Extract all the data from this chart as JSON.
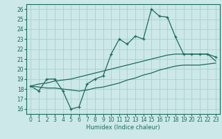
{
  "xlabel": "Humidex (Indice chaleur)",
  "xlim": [
    -0.5,
    23.5
  ],
  "ylim": [
    15.5,
    26.5
  ],
  "yticks": [
    16,
    17,
    18,
    19,
    20,
    21,
    22,
    23,
    24,
    25,
    26
  ],
  "xticks": [
    0,
    1,
    2,
    3,
    4,
    5,
    6,
    7,
    8,
    9,
    10,
    11,
    12,
    13,
    14,
    15,
    16,
    17,
    18,
    19,
    20,
    21,
    22,
    23
  ],
  "bg_color": "#cce8e8",
  "grid_color": "#aad0d0",
  "line_color": "#1a6b5a",
  "line1_x": [
    0,
    1,
    2,
    3,
    4,
    5,
    6,
    7,
    8,
    9,
    10,
    11,
    12,
    13,
    14,
    15,
    16,
    17,
    18,
    19,
    20,
    21,
    22,
    23
  ],
  "line1_y": [
    18.3,
    17.8,
    19.0,
    19.0,
    17.8,
    16.0,
    16.2,
    18.5,
    19.0,
    19.3,
    21.5,
    23.0,
    22.5,
    23.3,
    23.0,
    26.0,
    25.3,
    25.2,
    23.2,
    21.5,
    21.5,
    21.5,
    21.5,
    21.2
  ],
  "line2_x": [
    0,
    1,
    2,
    3,
    4,
    5,
    6,
    7,
    8,
    9,
    10,
    11,
    12,
    13,
    14,
    15,
    16,
    17,
    18,
    19,
    20,
    21,
    22,
    23
  ],
  "line2_y": [
    18.3,
    18.5,
    18.6,
    18.8,
    18.9,
    19.0,
    19.2,
    19.4,
    19.6,
    19.8,
    20.0,
    20.2,
    20.4,
    20.6,
    20.8,
    21.0,
    21.2,
    21.4,
    21.5,
    21.5,
    21.5,
    21.5,
    21.5,
    20.8
  ],
  "line3_x": [
    0,
    1,
    2,
    3,
    4,
    5,
    6,
    7,
    8,
    9,
    10,
    11,
    12,
    13,
    14,
    15,
    16,
    17,
    18,
    19,
    20,
    21,
    22,
    23
  ],
  "line3_y": [
    18.3,
    18.2,
    18.1,
    18.1,
    18.0,
    17.9,
    17.8,
    17.9,
    18.1,
    18.2,
    18.4,
    18.6,
    18.9,
    19.1,
    19.4,
    19.6,
    19.9,
    20.1,
    20.3,
    20.4,
    20.4,
    20.4,
    20.5,
    20.6
  ]
}
